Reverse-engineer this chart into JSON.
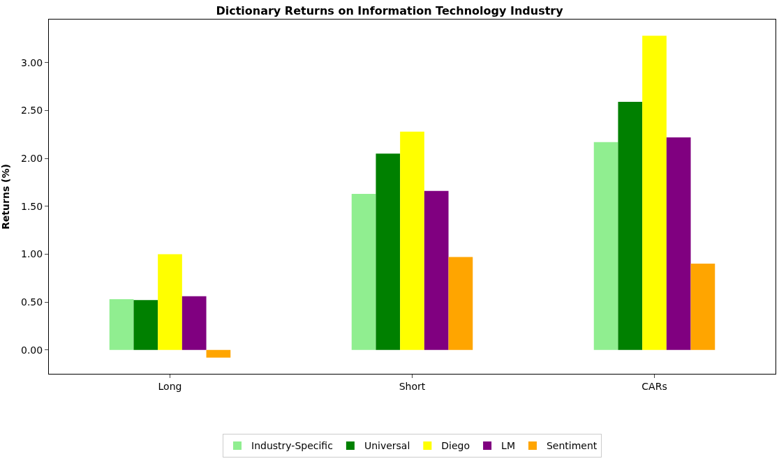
{
  "chart_data": {
    "type": "bar",
    "title": "Dictionary Returns on Information Technology Industry",
    "ylabel": "Returns (%)",
    "categories": [
      "Long",
      "Short",
      "CARs"
    ],
    "series": [
      {
        "name": "Industry-Specific",
        "color": "#90ee90",
        "values": [
          0.53,
          1.63,
          2.17
        ]
      },
      {
        "name": "Universal",
        "color": "#008000",
        "values": [
          0.52,
          2.05,
          2.59
        ]
      },
      {
        "name": "Diego",
        "color": "#ffff00",
        "values": [
          1.0,
          2.28,
          3.28
        ]
      },
      {
        "name": "LM",
        "color": "#800080",
        "values": [
          0.56,
          1.66,
          2.22
        ]
      },
      {
        "name": "Sentiment",
        "color": "#ffa500",
        "values": [
          -0.08,
          0.97,
          0.9
        ]
      }
    ],
    "ylim": [
      -0.25,
      3.45
    ],
    "yticks": [
      {
        "value": 0,
        "label": "0.00"
      },
      {
        "value": 0.5,
        "label": "0.50"
      },
      {
        "value": 1,
        "label": "1.00"
      },
      {
        "value": 1.5,
        "label": "1.50"
      },
      {
        "value": 2,
        "label": "2.00"
      },
      {
        "value": 2.5,
        "label": "2.50"
      },
      {
        "value": 3,
        "label": "3.00"
      }
    ],
    "legend": "bottom"
  }
}
